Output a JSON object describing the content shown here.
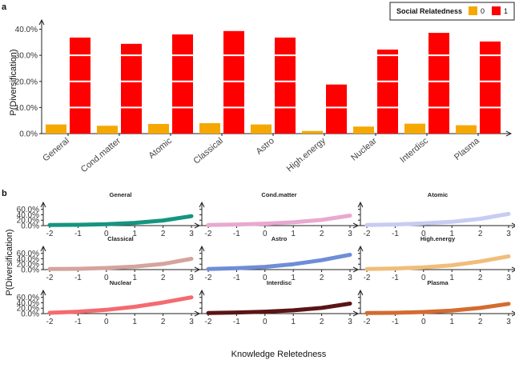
{
  "panel_a_label": "a",
  "panel_b_label": "b",
  "chart_data": [
    {
      "type": "bar",
      "title": "",
      "xlabel": "",
      "ylabel": "P(Diversification)",
      "ylim": [
        0,
        0.42
      ],
      "yticks": [
        "0.0%",
        "10.0%",
        "20.0%",
        "30.0%",
        "40.0%"
      ],
      "legend": {
        "title": "Social Relatedness",
        "position": "top-right"
      },
      "categories": [
        "General",
        "Cond.matter",
        "Atomic",
        "Classical",
        "Astro",
        "High.energy",
        "Nuclear",
        "Interdisc",
        "Plasma"
      ],
      "series": [
        {
          "name": "0",
          "color": "#F5A800",
          "values": [
            0.035,
            0.03,
            0.037,
            0.04,
            0.035,
            0.01,
            0.027,
            0.038,
            0.032
          ]
        },
        {
          "name": "1",
          "color": "#FF0000",
          "values": [
            0.368,
            0.344,
            0.38,
            0.393,
            0.368,
            0.188,
            0.322,
            0.386,
            0.353
          ]
        }
      ]
    },
    {
      "type": "line",
      "xlabel": "Knowledge Reletedness",
      "ylabel": "P(Diversification)",
      "x": [
        -2,
        -1,
        0,
        1,
        2,
        3
      ],
      "xticks": [
        "-2",
        "-1",
        "0",
        "1",
        "2",
        "3"
      ],
      "ylim": [
        0,
        0.65
      ],
      "yticks": [
        "0.0%",
        "20.0%",
        "40.0%",
        "60.0%"
      ],
      "facets": [
        {
          "title": "General",
          "color": "#14957F",
          "values": [
            0.02,
            0.03,
            0.05,
            0.1,
            0.19,
            0.35
          ]
        },
        {
          "title": "Cond.matter",
          "color": "#E9A8CF",
          "values": [
            0.02,
            0.04,
            0.07,
            0.12,
            0.21,
            0.37
          ]
        },
        {
          "title": "Atomic",
          "color": "#C7CCF3",
          "values": [
            0.02,
            0.04,
            0.08,
            0.14,
            0.25,
            0.43
          ]
        },
        {
          "title": "Classical",
          "color": "#D5A49D",
          "values": [
            0.02,
            0.03,
            0.06,
            0.11,
            0.21,
            0.4
          ]
        },
        {
          "title": "Astro",
          "color": "#6F8DD7",
          "values": [
            0.02,
            0.05,
            0.1,
            0.2,
            0.35,
            0.55
          ]
        },
        {
          "title": "High.energy",
          "color": "#F0BD7A",
          "values": [
            0.02,
            0.04,
            0.08,
            0.16,
            0.3,
            0.49
          ]
        },
        {
          "title": "Nuclear",
          "color": "#F46A6F",
          "values": [
            0.03,
            0.07,
            0.14,
            0.25,
            0.41,
            0.6
          ]
        },
        {
          "title": "Interdisc",
          "color": "#5A1416",
          "values": [
            0.02,
            0.04,
            0.07,
            0.12,
            0.21,
            0.37
          ]
        },
        {
          "title": "Plasma",
          "color": "#D46B30",
          "values": [
            0.02,
            0.03,
            0.06,
            0.11,
            0.21,
            0.36
          ]
        }
      ]
    }
  ]
}
